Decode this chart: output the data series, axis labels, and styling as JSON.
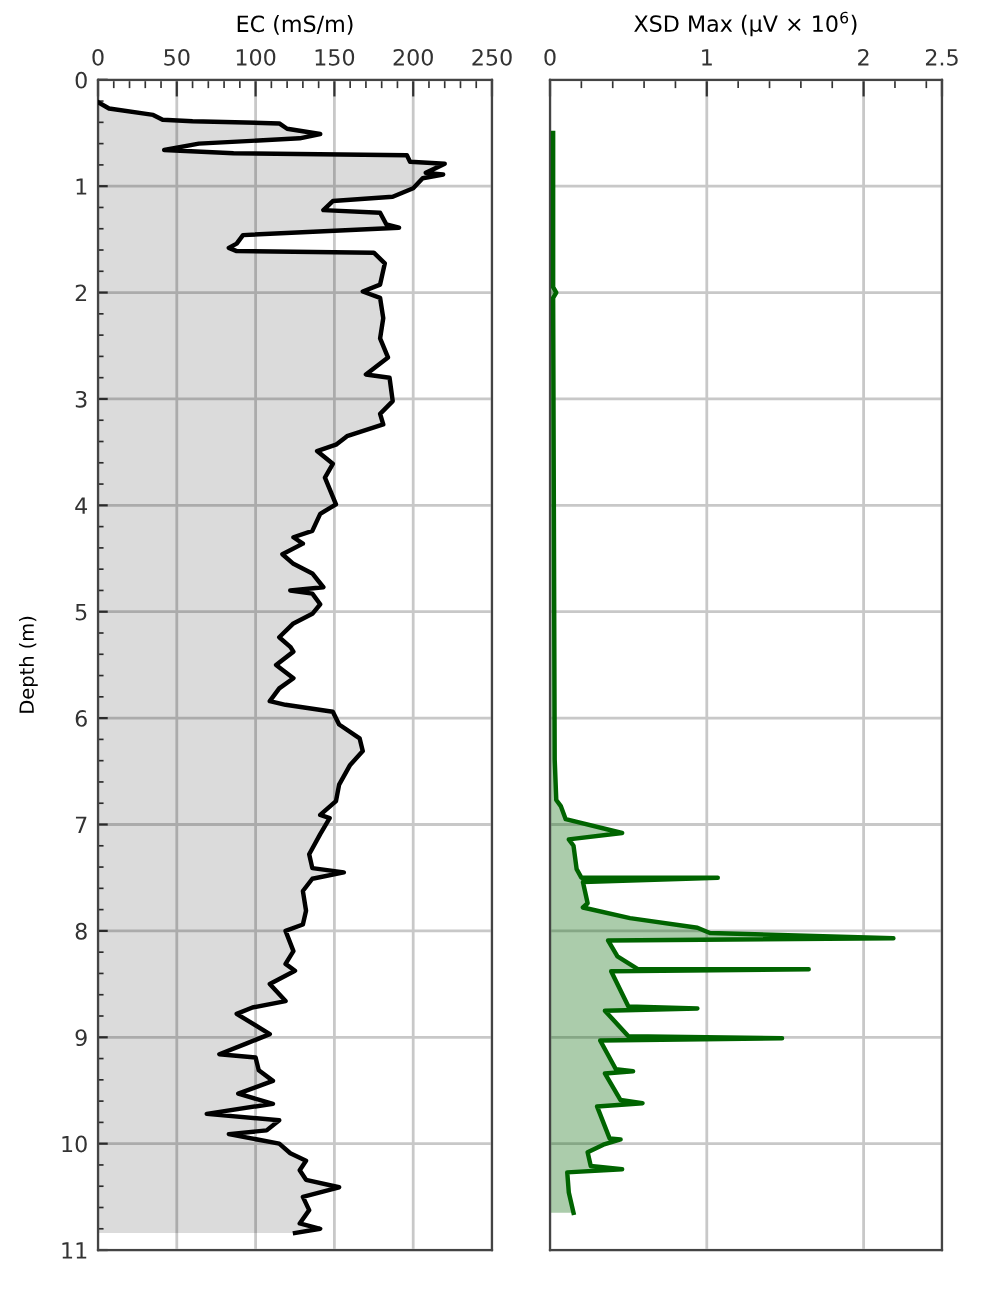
{
  "chart_data": [
    {
      "type": "area",
      "orientation": "horizontal",
      "xlabel": "EC (mS/m)",
      "ylabel": "Depth (m)",
      "xlim": [
        0,
        250
      ],
      "xticks": [
        0,
        50,
        100,
        150,
        200,
        250
      ],
      "ylim": [
        11,
        0
      ],
      "yticks": [
        0,
        1,
        2,
        3,
        4,
        5,
        6,
        7,
        8,
        9,
        10,
        11
      ],
      "grid": true,
      "series": [
        {
          "color": "#000000",
          "x": [
            0.21,
            0.27,
            0.33,
            0.375,
            0.39,
            0.41,
            0.46,
            0.51,
            0.55,
            0.6,
            0.66,
            0.69,
            0.71,
            0.77,
            0.79,
            0.875,
            0.89,
            0.925,
            1.02,
            1.1,
            1.14,
            1.225,
            1.25,
            1.36,
            1.39,
            1.46,
            1.54,
            1.58,
            1.61,
            1.625,
            1.725,
            1.925,
            1.99,
            2.05,
            2.24,
            2.43,
            2.61,
            2.77,
            2.8,
            3.02,
            3.14,
            3.24,
            3.35,
            3.43,
            3.49,
            3.61,
            3.74,
            3.99,
            4.08,
            4.24,
            4.3,
            4.36,
            4.46,
            4.55,
            4.64,
            4.77,
            4.8,
            4.83,
            4.93,
            5.02,
            5.11,
            5.24,
            5.33,
            5.375,
            5.5,
            5.625,
            5.72,
            5.84,
            5.875,
            5.94,
            6.06,
            6.19,
            6.31,
            6.44,
            6.625,
            6.78,
            6.91,
            6.94,
            7.09,
            7.28,
            7.41,
            7.45,
            7.51,
            7.625,
            7.81,
            7.94,
            8.0,
            8.19,
            8.31,
            8.375,
            8.5,
            8.66,
            8.72,
            8.78,
            8.97,
            9.06,
            9.16,
            9.19,
            9.31,
            9.41,
            9.53,
            9.625,
            9.72,
            9.78,
            9.875,
            9.91,
            10.0,
            10.09,
            10.16,
            10.25,
            10.34,
            10.41,
            10.5,
            10.625,
            10.75,
            10.8,
            10.84
          ],
          "values": [
            0,
            7,
            35,
            41,
            60,
            115,
            120,
            141,
            128,
            64,
            42,
            86,
            196,
            198,
            220,
            208,
            219,
            206,
            200,
            187,
            149,
            143,
            179,
            183,
            191,
            92,
            88,
            83,
            88,
            175,
            182,
            179,
            168,
            179,
            181,
            179,
            184,
            170,
            185,
            187,
            179,
            181,
            158,
            151,
            139,
            149,
            144,
            151,
            141,
            136,
            124,
            130,
            117,
            124,
            136,
            143,
            122,
            136,
            141,
            136,
            124,
            115,
            122,
            124,
            113,
            124,
            115,
            109,
            119,
            149,
            153,
            166,
            168,
            160,
            153,
            151,
            141,
            147,
            141,
            134,
            136,
            156,
            136,
            130,
            132,
            130,
            119,
            124,
            119,
            125,
            109,
            119,
            98,
            88,
            109,
            94,
            77,
            100,
            102,
            111,
            89,
            111,
            69,
            115,
            107,
            83,
            115,
            122,
            132,
            128,
            132,
            153,
            130,
            134,
            128,
            141,
            125
          ]
        }
      ]
    },
    {
      "type": "area",
      "orientation": "horizontal",
      "xlabel": "XSD Max (µV × 10$^{6}$)",
      "xlim": [
        0,
        2.5
      ],
      "xticks": [
        0,
        1,
        2,
        2.5
      ],
      "ylim": [
        11,
        0
      ],
      "yticks": [
        0,
        1,
        2,
        3,
        4,
        5,
        6,
        7,
        8,
        9,
        10,
        11
      ],
      "grid": true,
      "tick_labels": "x",
      "series": [
        {
          "color": "#006400",
          "x": [
            0.5,
            1.95,
            2.0,
            2.05,
            6.39,
            6.77,
            6.83,
            6.95,
            7.08,
            7.14,
            7.2,
            7.42,
            7.5,
            7.5,
            7.54,
            7.74,
            7.78,
            7.88,
            7.97,
            8.02,
            8.07,
            8.09,
            8.24,
            8.36,
            8.36,
            8.38,
            8.71,
            8.73,
            8.75,
            8.99,
            9.01,
            9.03,
            9.3,
            9.32,
            9.34,
            9.59,
            9.62,
            9.65,
            9.95,
            9.96,
            10.01,
            10.08,
            10.21,
            10.24,
            10.27,
            10.46,
            10.65
          ],
          "values": [
            0.02,
            0.02,
            0.04,
            0.02,
            0.03,
            0.04,
            0.07,
            0.1,
            0.46,
            0.12,
            0.15,
            0.17,
            0.2,
            1.07,
            0.21,
            0.24,
            0.21,
            0.51,
            0.94,
            1.02,
            2.19,
            0.37,
            0.43,
            0.56,
            1.65,
            0.39,
            0.5,
            0.94,
            0.35,
            0.5,
            1.48,
            0.32,
            0.42,
            0.53,
            0.35,
            0.45,
            0.59,
            0.3,
            0.38,
            0.45,
            0.34,
            0.24,
            0.26,
            0.46,
            0.11,
            0.12,
            0.15
          ]
        }
      ]
    }
  ]
}
